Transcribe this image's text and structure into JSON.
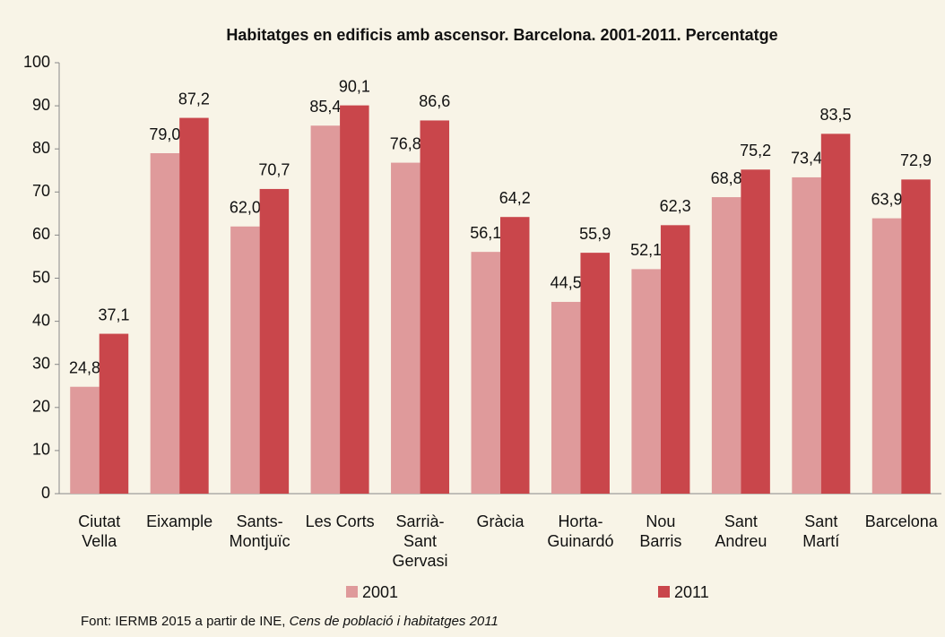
{
  "chart_data": {
    "type": "bar",
    "title": "Habitatges en edificis amb ascensor. Barcelona. 2001-2011. Percentatge",
    "categories": [
      [
        "Ciutat",
        "Vella"
      ],
      [
        "Eixample"
      ],
      [
        "Sants-",
        "Montjuïc"
      ],
      [
        "Les Corts"
      ],
      [
        "Sarrià-",
        "Sant",
        "Gervasi"
      ],
      [
        "Gràcia"
      ],
      [
        "Horta-",
        "Guinardó"
      ],
      [
        "Nou",
        "Barris"
      ],
      [
        "Sant",
        "Andreu"
      ],
      [
        "Sant",
        "Martí"
      ],
      [
        "Barcelona"
      ]
    ],
    "series": [
      {
        "name": "2001",
        "color": "#df9a9b",
        "values": [
          24.8,
          79.0,
          62.0,
          85.4,
          76.8,
          56.1,
          44.5,
          52.1,
          68.8,
          73.4,
          63.9
        ],
        "value_labels": [
          "24,8",
          "79,0",
          "62,0",
          "85,4",
          "76,8",
          "56,1",
          "44,5",
          "52,1",
          "68,8",
          "73,4",
          "63,9"
        ]
      },
      {
        "name": "2011",
        "color": "#c9464b",
        "values": [
          37.1,
          87.2,
          70.7,
          90.1,
          86.6,
          64.2,
          55.9,
          62.3,
          75.2,
          83.5,
          72.9
        ],
        "value_labels": [
          "37,1",
          "87,2",
          "70,7",
          "90,1",
          "86,6",
          "64,2",
          "55,9",
          "62,3",
          "75,2",
          "83,5",
          "72,9"
        ]
      }
    ],
    "ylim": [
      0,
      100
    ],
    "yticks": [
      0,
      10,
      20,
      30,
      40,
      50,
      60,
      70,
      80,
      90,
      100
    ],
    "grid": false,
    "source": {
      "text": "Font: IERMB 2015 a partir de INE, ",
      "italic": "Cens de població i habitatges 2011"
    }
  }
}
